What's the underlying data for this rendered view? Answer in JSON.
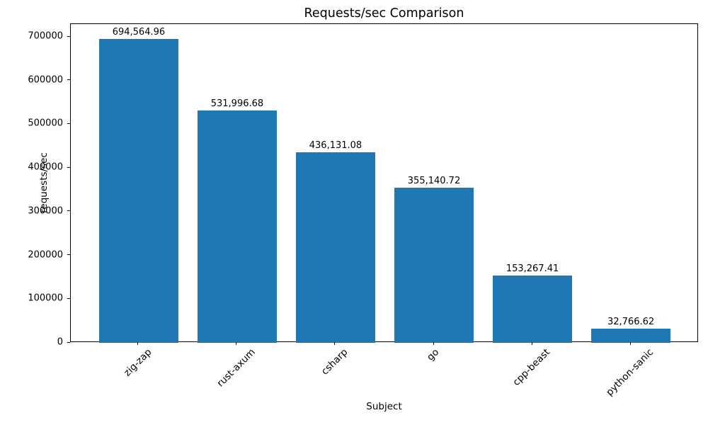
{
  "chart_data": {
    "type": "bar",
    "title": "Requests/sec Comparison",
    "xlabel": "Subject",
    "ylabel": "requests/sec",
    "categories": [
      "zig-zap",
      "rust-axum",
      "csharp",
      "go",
      "cpp-beast",
      "python-sanic"
    ],
    "values": [
      694564.96,
      531996.68,
      436131.08,
      355140.72,
      153267.41,
      32766.62
    ],
    "value_labels": [
      "694,564.96",
      "531,996.68",
      "436,131.08",
      "355,140.72",
      "153,267.41",
      "32,766.62"
    ],
    "yticks": [
      0,
      100000,
      200000,
      300000,
      400000,
      500000,
      600000,
      700000
    ],
    "ytick_labels": [
      "0",
      "100000",
      "200000",
      "300000",
      "400000",
      "500000",
      "600000",
      "700000"
    ],
    "ylim": [
      0,
      729293.21
    ],
    "bar_color": "#1f77b4",
    "text_color": "#000000",
    "x_tick_rotation": 45,
    "grid": false,
    "legend": "none"
  }
}
